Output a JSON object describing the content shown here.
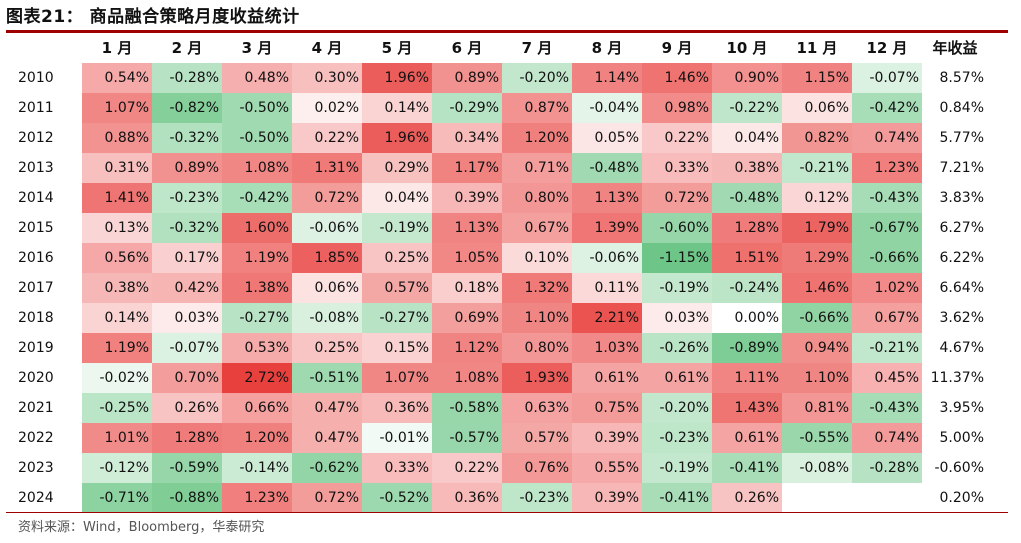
{
  "title": "图表21：  商品融合策略月度收益统计",
  "source": "资料来源：Wind，Bloomberg，华泰研究",
  "colors": {
    "positive": "#e8403d",
    "negative": "#1fa847",
    "rule": "#9e0000"
  },
  "chart_data": {
    "type": "heatmap",
    "columns": [
      "1 月",
      "2 月",
      "3 月",
      "4 月",
      "5 月",
      "6 月",
      "7 月",
      "8 月",
      "9 月",
      "10 月",
      "11 月",
      "12 月"
    ],
    "annual_header": "年收益",
    "rows": [
      {
        "year": "2010",
        "values": [
          "0.54%",
          "-0.28%",
          "0.48%",
          "0.30%",
          "1.96%",
          "0.89%",
          "-0.20%",
          "1.14%",
          "1.46%",
          "0.90%",
          "1.15%",
          "-0.07%"
        ],
        "annual": "8.57%"
      },
      {
        "year": "2011",
        "values": [
          "1.07%",
          "-0.82%",
          "-0.50%",
          "0.02%",
          "0.14%",
          "-0.29%",
          "0.87%",
          "-0.04%",
          "0.98%",
          "-0.22%",
          "0.06%",
          "-0.42%"
        ],
        "annual": "0.84%"
      },
      {
        "year": "2012",
        "values": [
          "0.88%",
          "-0.32%",
          "-0.50%",
          "0.22%",
          "1.96%",
          "0.34%",
          "1.20%",
          "0.05%",
          "0.22%",
          "0.04%",
          "0.82%",
          "0.74%"
        ],
        "annual": "5.77%"
      },
      {
        "year": "2013",
        "values": [
          "0.31%",
          "0.89%",
          "1.08%",
          "1.31%",
          "0.29%",
          "1.17%",
          "0.71%",
          "-0.48%",
          "0.33%",
          "0.38%",
          "-0.21%",
          "1.23%"
        ],
        "annual": "7.21%"
      },
      {
        "year": "2014",
        "values": [
          "1.41%",
          "-0.23%",
          "-0.42%",
          "0.72%",
          "0.04%",
          "0.39%",
          "0.80%",
          "1.13%",
          "0.72%",
          "-0.48%",
          "0.12%",
          "-0.43%"
        ],
        "annual": "3.83%"
      },
      {
        "year": "2015",
        "values": [
          "0.13%",
          "-0.32%",
          "1.60%",
          "-0.06%",
          "-0.19%",
          "1.13%",
          "0.67%",
          "1.39%",
          "-0.60%",
          "1.28%",
          "1.79%",
          "-0.67%"
        ],
        "annual": "6.27%"
      },
      {
        "year": "2016",
        "values": [
          "0.56%",
          "0.17%",
          "1.19%",
          "1.85%",
          "0.25%",
          "1.05%",
          "0.10%",
          "-0.06%",
          "-1.15%",
          "1.51%",
          "1.29%",
          "-0.66%"
        ],
        "annual": "6.22%"
      },
      {
        "year": "2017",
        "values": [
          "0.38%",
          "0.42%",
          "1.38%",
          "0.06%",
          "0.57%",
          "0.18%",
          "1.32%",
          "0.11%",
          "-0.19%",
          "-0.24%",
          "1.46%",
          "1.02%"
        ],
        "annual": "6.64%"
      },
      {
        "year": "2018",
        "values": [
          "0.14%",
          "0.03%",
          "-0.27%",
          "-0.08%",
          "-0.27%",
          "0.69%",
          "1.10%",
          "2.21%",
          "0.03%",
          "0.00%",
          "-0.66%",
          "0.67%"
        ],
        "annual": "3.62%"
      },
      {
        "year": "2019",
        "values": [
          "1.19%",
          "-0.07%",
          "0.53%",
          "0.25%",
          "0.15%",
          "1.12%",
          "0.80%",
          "1.03%",
          "-0.26%",
          "-0.89%",
          "0.94%",
          "-0.21%"
        ],
        "annual": "4.67%"
      },
      {
        "year": "2020",
        "values": [
          "-0.02%",
          "0.70%",
          "2.72%",
          "-0.51%",
          "1.07%",
          "1.08%",
          "1.93%",
          "0.61%",
          "0.61%",
          "1.11%",
          "1.10%",
          "0.45%"
        ],
        "annual": "11.37%"
      },
      {
        "year": "2021",
        "values": [
          "-0.25%",
          "0.26%",
          "0.66%",
          "0.47%",
          "0.36%",
          "-0.58%",
          "0.63%",
          "0.75%",
          "-0.20%",
          "1.43%",
          "0.81%",
          "-0.43%"
        ],
        "annual": "3.95%"
      },
      {
        "year": "2022",
        "values": [
          "1.01%",
          "1.28%",
          "1.20%",
          "0.47%",
          "-0.01%",
          "-0.57%",
          "0.57%",
          "0.39%",
          "-0.23%",
          "0.61%",
          "-0.55%",
          "0.74%"
        ],
        "annual": "5.00%"
      },
      {
        "year": "2023",
        "values": [
          "-0.12%",
          "-0.59%",
          "-0.14%",
          "-0.62%",
          "0.33%",
          "0.22%",
          "0.76%",
          "0.55%",
          "-0.19%",
          "-0.41%",
          "-0.08%",
          "-0.28%"
        ],
        "annual": "-0.60%"
      },
      {
        "year": "2024",
        "values": [
          "-0.71%",
          "-0.88%",
          "1.23%",
          "0.72%",
          "-0.52%",
          "0.36%",
          "-0.23%",
          "0.39%",
          "-0.41%",
          "0.26%",
          "",
          ""
        ],
        "annual": "0.20%"
      }
    ]
  }
}
